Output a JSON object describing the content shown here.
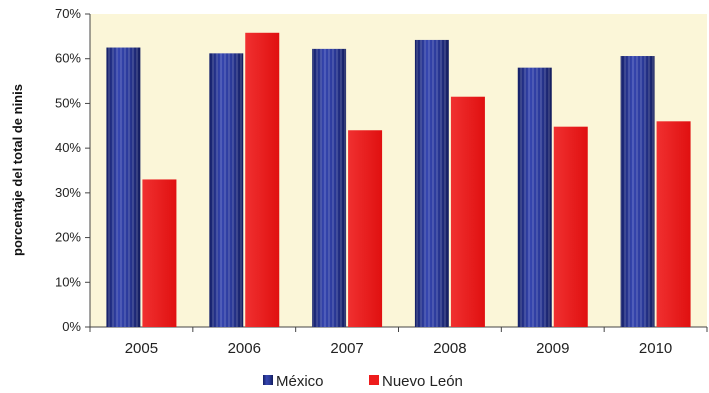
{
  "chart_data": {
    "type": "bar",
    "categories": [
      "2005",
      "2006",
      "2007",
      "2008",
      "2009",
      "2010"
    ],
    "series": [
      {
        "name": "México",
        "values": [
          62.5,
          61.2,
          62.2,
          64.2,
          58.0,
          60.6
        ],
        "color": "#2b3a9a"
      },
      {
        "name": "Nuevo León",
        "values": [
          33.0,
          65.8,
          44.0,
          51.5,
          44.8,
          46.0
        ],
        "color": "#ee1c1c"
      }
    ],
    "title": "",
    "xlabel": "",
    "ylabel": "porcentaje del total de ninis",
    "ylim": [
      0,
      70
    ],
    "yticks": [
      "0%",
      "10%",
      "20%",
      "30%",
      "40%",
      "50%",
      "60%",
      "70%"
    ],
    "grid": false,
    "legend_position": "bottom",
    "plot_background": "#fbf6d8"
  }
}
